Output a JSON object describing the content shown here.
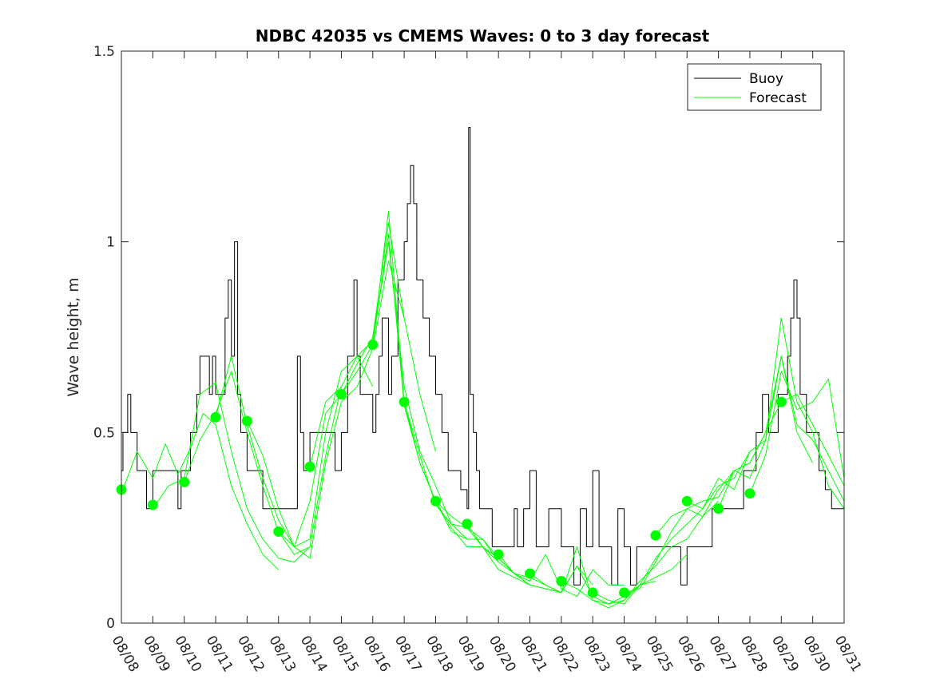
{
  "chart_data": {
    "type": "line",
    "title": "NDBC 42035 vs CMEMS Waves: 0 to 3 day forecast",
    "xlabel": "",
    "ylabel": "Wave height, m",
    "x_ticks": [
      "08/08",
      "08/09",
      "08/10",
      "08/11",
      "08/12",
      "08/13",
      "08/14",
      "08/15",
      "08/16",
      "08/17",
      "08/18",
      "08/19",
      "08/20",
      "08/21",
      "08/22",
      "08/23",
      "08/24",
      "08/25",
      "08/26",
      "08/27",
      "08/28",
      "08/29",
      "08/30",
      "08/31"
    ],
    "y_ticks": [
      "0",
      "0.5",
      "1",
      "1.5"
    ],
    "xlim": [
      0,
      23
    ],
    "ylim": [
      0,
      1.5
    ],
    "legend": {
      "placement": "top-right",
      "entries": [
        "Buoy",
        "Forecast"
      ]
    },
    "colors": {
      "buoy": "#000000",
      "forecast": "#00ff00",
      "axes": "#262626"
    },
    "series": [
      {
        "name": "Buoy",
        "x": [
          0,
          0.05,
          0.1,
          0.2,
          0.3,
          0.4,
          0.5,
          0.6,
          0.8,
          1.0,
          1.2,
          1.5,
          1.8,
          1.85,
          1.9,
          2.0,
          2.2,
          2.4,
          2.5,
          2.6,
          2.8,
          2.9,
          3.0,
          3.2,
          3.3,
          3.4,
          3.5,
          3.6,
          3.7,
          3.8,
          3.9,
          4.0,
          4.2,
          4.5,
          4.8,
          5.0,
          5.2,
          5.5,
          5.6,
          5.7,
          5.8,
          6.0,
          6.3,
          6.5,
          6.8,
          6.9,
          7.0,
          7.2,
          7.4,
          7.5,
          7.6,
          7.7,
          7.8,
          8.0,
          8.1,
          8.2,
          8.3,
          8.4,
          8.5,
          8.6,
          8.7,
          8.8,
          8.9,
          9.0,
          9.1,
          9.2,
          9.3,
          9.4,
          9.6,
          9.8,
          10.0,
          10.2,
          10.4,
          10.6,
          10.8,
          11.0,
          11.05,
          11.1,
          11.2,
          11.3,
          11.4,
          11.5,
          11.6,
          11.8,
          12.0,
          12.2,
          12.4,
          12.5,
          12.6,
          12.8,
          12.9,
          13.0,
          13.2,
          13.3,
          13.4,
          13.6,
          13.8,
          14.0,
          14.2,
          14.4,
          14.6,
          14.8,
          15.0,
          15.2,
          15.4,
          15.6,
          15.8,
          16.0,
          16.2,
          16.4,
          16.6,
          16.8,
          17.0,
          17.2,
          17.4,
          17.6,
          17.8,
          18.0,
          18.2,
          18.4,
          18.6,
          18.8,
          19.0,
          19.2,
          19.4,
          19.6,
          19.8,
          20.0,
          20.2,
          20.4,
          20.5,
          20.6,
          20.8,
          20.9,
          21.0,
          21.2,
          21.3,
          21.4,
          21.5,
          21.6,
          21.8,
          22.0,
          22.2,
          22.4,
          22.6,
          22.8,
          23.0
        ],
        "y": [
          0.4,
          0.5,
          0.5,
          0.6,
          0.5,
          0.5,
          0.4,
          0.4,
          0.3,
          0.4,
          0.4,
          0.4,
          0.3,
          0.3,
          0.4,
          0.4,
          0.5,
          0.6,
          0.7,
          0.7,
          0.6,
          0.7,
          0.6,
          0.6,
          0.8,
          0.9,
          0.7,
          1.0,
          0.6,
          0.5,
          0.5,
          0.4,
          0.4,
          0.3,
          0.3,
          0.3,
          0.3,
          0.3,
          0.7,
          0.5,
          0.4,
          0.5,
          0.5,
          0.5,
          0.4,
          0.4,
          0.5,
          0.7,
          0.9,
          0.7,
          0.6,
          0.6,
          0.6,
          0.5,
          0.6,
          0.7,
          0.8,
          0.8,
          0.6,
          0.7,
          0.7,
          0.9,
          0.9,
          1.0,
          1.1,
          1.2,
          1.1,
          0.9,
          0.8,
          0.7,
          0.6,
          0.5,
          0.4,
          0.4,
          0.35,
          0.3,
          1.3,
          0.6,
          0.5,
          0.4,
          0.3,
          0.3,
          0.3,
          0.2,
          0.2,
          0.2,
          0.2,
          0.3,
          0.2,
          0.3,
          0.3,
          0.4,
          0.2,
          0.2,
          0.2,
          0.3,
          0.3,
          0.2,
          0.2,
          0.1,
          0.3,
          0.2,
          0.4,
          0.2,
          0.2,
          0.1,
          0.3,
          0.2,
          0.1,
          0.2,
          0.2,
          0.2,
          0.2,
          0.2,
          0.2,
          0.2,
          0.1,
          0.2,
          0.2,
          0.2,
          0.2,
          0.3,
          0.3,
          0.3,
          0.3,
          0.3,
          0.4,
          0.4,
          0.5,
          0.6,
          0.6,
          0.5,
          0.5,
          0.6,
          0.6,
          0.7,
          0.8,
          0.9,
          0.8,
          0.6,
          0.5,
          0.5,
          0.4,
          0.35,
          0.3,
          0.3,
          0.3
        ]
      },
      {
        "name": "Forecast",
        "x": [
          0,
          0.5,
          1.0,
          1.4,
          1.8,
          2.2,
          2.6,
          3.0,
          3.5,
          4.0,
          4.5,
          5.0
        ],
        "y": [
          0.34,
          0.45,
          0.38,
          0.47,
          0.39,
          0.46,
          0.55,
          0.52,
          0.36,
          0.26,
          0.18,
          0.14
        ]
      },
      {
        "name": "Forecast",
        "x": [
          1.0,
          1.5,
          2.0,
          2.5,
          3.0,
          3.5,
          4.0,
          4.5,
          5.0,
          5.5,
          6.0
        ],
        "y": [
          0.3,
          0.36,
          0.38,
          0.6,
          0.63,
          0.45,
          0.3,
          0.22,
          0.17,
          0.16,
          0.2
        ]
      },
      {
        "name": "Forecast",
        "x": [
          2.0,
          2.5,
          3.0,
          3.5,
          4.0,
          4.5,
          5.0,
          5.5,
          6.0,
          6.5,
          7.0
        ],
        "y": [
          0.37,
          0.48,
          0.55,
          0.66,
          0.5,
          0.36,
          0.24,
          0.18,
          0.2,
          0.44,
          0.62
        ]
      },
      {
        "name": "Forecast",
        "x": [
          3.0,
          3.5,
          4.0,
          4.5,
          5.0,
          5.5,
          6.0,
          6.5,
          7.0,
          7.5,
          8.0
        ],
        "y": [
          0.54,
          0.7,
          0.52,
          0.38,
          0.27,
          0.2,
          0.22,
          0.5,
          0.66,
          0.7,
          0.62
        ]
      },
      {
        "name": "Forecast",
        "x": [
          4.0,
          4.5,
          5.0,
          5.5,
          6.0,
          6.5,
          7.0,
          7.5,
          8.0,
          8.5,
          9.0
        ],
        "y": [
          0.53,
          0.44,
          0.3,
          0.2,
          0.17,
          0.42,
          0.58,
          0.62,
          0.72,
          0.95,
          0.8
        ]
      },
      {
        "name": "Forecast",
        "x": [
          5.0,
          5.5,
          6.0,
          6.5,
          7.0,
          7.5,
          8.0,
          8.5,
          9.0,
          9.5,
          10.0
        ],
        "y": [
          0.24,
          0.2,
          0.32,
          0.55,
          0.6,
          0.68,
          0.75,
          1.05,
          0.8,
          0.6,
          0.45
        ]
      },
      {
        "name": "Forecast",
        "x": [
          6.0,
          6.5,
          7.0,
          7.5,
          8.0,
          8.5,
          9.0,
          9.5,
          10.0,
          10.5,
          11.0
        ],
        "y": [
          0.41,
          0.58,
          0.62,
          0.7,
          0.74,
          1.0,
          0.62,
          0.45,
          0.36,
          0.26,
          0.22
        ]
      },
      {
        "name": "Forecast",
        "x": [
          7.0,
          7.5,
          8.0,
          8.5,
          9.0,
          9.5,
          10.0,
          10.5,
          11.0,
          11.5,
          12.0
        ],
        "y": [
          0.6,
          0.66,
          0.73,
          1.08,
          0.58,
          0.42,
          0.32,
          0.24,
          0.22,
          0.22,
          0.16
        ]
      },
      {
        "name": "Forecast",
        "x": [
          8.0,
          8.5,
          9.0,
          9.5,
          10.0,
          10.5,
          11.0,
          11.5,
          12.0,
          12.5,
          13.0
        ],
        "y": [
          0.73,
          1.02,
          0.57,
          0.42,
          0.32,
          0.25,
          0.2,
          0.2,
          0.14,
          0.12,
          0.1
        ]
      },
      {
        "name": "Forecast",
        "x": [
          9.0,
          9.5,
          10.0,
          10.5,
          11.0,
          11.5,
          12.0,
          12.5,
          13.0,
          13.5,
          14.0
        ],
        "y": [
          0.58,
          0.44,
          0.31,
          0.26,
          0.25,
          0.2,
          0.16,
          0.13,
          0.1,
          0.09,
          0.08
        ]
      },
      {
        "name": "Forecast",
        "x": [
          10.0,
          10.5,
          11.0,
          11.5,
          12.0,
          12.5,
          13.0,
          13.5,
          14.0,
          14.5,
          15.0
        ],
        "y": [
          0.32,
          0.28,
          0.25,
          0.22,
          0.17,
          0.13,
          0.12,
          0.1,
          0.08,
          0.15,
          0.1
        ]
      },
      {
        "name": "Forecast",
        "x": [
          11.0,
          11.5,
          12.0,
          12.5,
          13.0,
          13.5,
          14.0,
          14.5,
          15.0,
          15.5,
          16.0
        ],
        "y": [
          0.26,
          0.2,
          0.17,
          0.13,
          0.11,
          0.18,
          0.09,
          0.07,
          0.14,
          0.1,
          0.1
        ]
      },
      {
        "name": "Forecast",
        "x": [
          12.0,
          12.5,
          13.0,
          13.5,
          14.0,
          14.5,
          15.0,
          15.5,
          16.0,
          16.5,
          17.0
        ],
        "y": [
          0.18,
          0.13,
          0.1,
          0.09,
          0.08,
          0.2,
          0.06,
          0.05,
          0.07,
          0.1,
          0.11
        ]
      },
      {
        "name": "Forecast",
        "x": [
          13.0,
          13.5,
          14.0,
          14.5,
          15.0,
          15.5,
          16.0,
          16.5,
          17.0,
          17.5,
          18.0
        ],
        "y": [
          0.13,
          0.1,
          0.08,
          0.15,
          0.07,
          0.05,
          0.06,
          0.1,
          0.12,
          0.14,
          0.18
        ]
      },
      {
        "name": "Forecast",
        "x": [
          14.0,
          14.5,
          15.0,
          15.5,
          16.0,
          16.5,
          17.0,
          17.5,
          18.0,
          18.5,
          19.0
        ],
        "y": [
          0.11,
          0.09,
          0.06,
          0.04,
          0.06,
          0.11,
          0.15,
          0.2,
          0.22,
          0.28,
          0.32
        ]
      },
      {
        "name": "Forecast",
        "x": [
          15.0,
          15.5,
          16.0,
          16.5,
          17.0,
          17.5,
          18.0,
          18.5,
          19.0,
          19.5,
          20.0
        ],
        "y": [
          0.08,
          0.06,
          0.05,
          0.1,
          0.17,
          0.22,
          0.26,
          0.3,
          0.38,
          0.35,
          0.45
        ]
      },
      {
        "name": "Forecast",
        "x": [
          16.0,
          16.5,
          17.0,
          17.5,
          18.0,
          18.5,
          19.0,
          19.5,
          20.0,
          20.5,
          21.0
        ],
        "y": [
          0.08,
          0.09,
          0.16,
          0.24,
          0.3,
          0.28,
          0.35,
          0.4,
          0.42,
          0.5,
          0.58
        ]
      },
      {
        "name": "Forecast",
        "x": [
          17.0,
          17.5,
          18.0,
          18.5,
          19.0,
          19.5,
          20.0,
          20.5,
          21.0,
          21.5,
          22.0
        ],
        "y": [
          0.23,
          0.28,
          0.3,
          0.32,
          0.33,
          0.4,
          0.38,
          0.48,
          0.7,
          0.5,
          0.42
        ]
      },
      {
        "name": "Forecast",
        "x": [
          18.0,
          18.5,
          19.0,
          19.5,
          20.0,
          20.5,
          21.0,
          21.5,
          22.0,
          22.5,
          23.0
        ],
        "y": [
          0.32,
          0.3,
          0.36,
          0.38,
          0.45,
          0.48,
          0.8,
          0.58,
          0.5,
          0.36,
          0.3
        ]
      },
      {
        "name": "Forecast",
        "x": [
          19.0,
          19.5,
          20.0,
          20.5,
          21.0,
          21.5,
          22.0,
          22.5,
          23.0
        ],
        "y": [
          0.3,
          0.4,
          0.42,
          0.5,
          0.7,
          0.52,
          0.48,
          0.4,
          0.32
        ]
      },
      {
        "name": "Forecast",
        "x": [
          20.0,
          20.5,
          21.0,
          21.5,
          22.0,
          22.5,
          23.0
        ],
        "y": [
          0.34,
          0.44,
          0.66,
          0.56,
          0.58,
          0.64,
          0.38
        ]
      },
      {
        "name": "Forecast",
        "x": [
          21.0,
          21.5,
          22.0,
          22.5,
          23.0
        ],
        "y": [
          0.58,
          0.6,
          0.52,
          0.44,
          0.36
        ]
      }
    ],
    "init_markers": {
      "name": "Forecast start",
      "x": [
        0,
        1,
        2,
        3,
        4,
        5,
        6,
        7,
        8,
        9,
        10,
        11,
        12,
        13,
        14,
        15,
        16,
        17,
        18,
        19,
        20,
        21
      ],
      "y": [
        0.35,
        0.31,
        0.37,
        0.54,
        0.53,
        0.24,
        0.41,
        0.6,
        0.73,
        0.58,
        0.32,
        0.26,
        0.18,
        0.13,
        0.11,
        0.08,
        0.08,
        0.23,
        0.32,
        0.3,
        0.34,
        0.58
      ]
    }
  }
}
